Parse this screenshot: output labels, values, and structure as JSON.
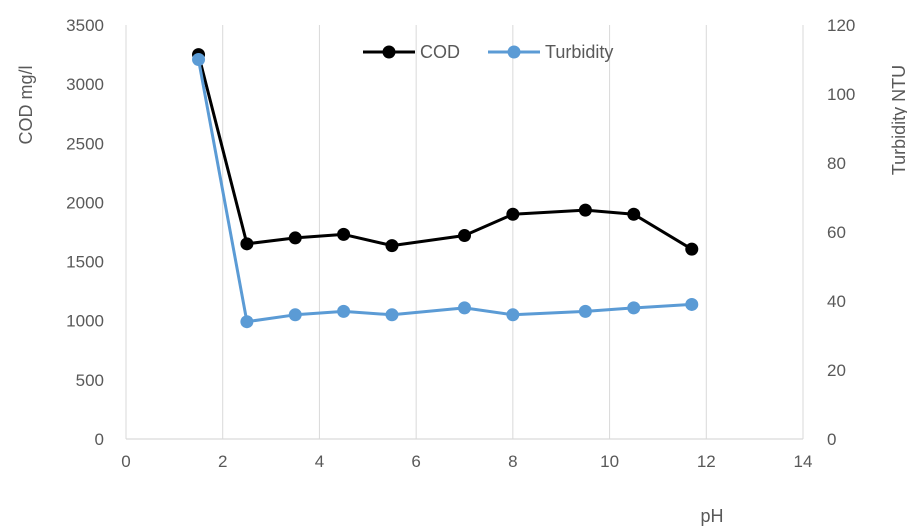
{
  "chart_data": {
    "type": "line",
    "title": "",
    "xlabel": "pH",
    "ylabel": "COD mg/l",
    "y2label": "Turbidity NTU",
    "xlim": [
      0,
      14
    ],
    "ylim": [
      0,
      3500
    ],
    "y2lim": [
      0,
      120
    ],
    "xticks": [
      "0",
      "2",
      "4",
      "6",
      "8",
      "10",
      "12",
      "14"
    ],
    "yticks": [
      "0",
      "500",
      "1000",
      "1500",
      "2000",
      "2500",
      "3000",
      "3500"
    ],
    "y2ticks": [
      "0",
      "20",
      "40",
      "60",
      "80",
      "100",
      "120"
    ],
    "grid": "vertical",
    "legend_position": "top-center",
    "series": [
      {
        "name": "COD",
        "axis": "left",
        "color": "#000000",
        "x": [
          1.5,
          2.5,
          3.5,
          4.5,
          5.5,
          7,
          8,
          9.5,
          10.5,
          11.7
        ],
        "y": [
          3250,
          1650,
          1700,
          1730,
          1635,
          1720,
          1900,
          1935,
          1900,
          1605
        ]
      },
      {
        "name": "Turbidity",
        "axis": "right",
        "color": "#5B9BD5",
        "x": [
          1.5,
          2.5,
          3.5,
          4.5,
          5.5,
          7,
          8,
          9.5,
          10.5,
          11.7
        ],
        "y": [
          110,
          34,
          36,
          37,
          36,
          38,
          36,
          37,
          38,
          39
        ]
      }
    ]
  }
}
